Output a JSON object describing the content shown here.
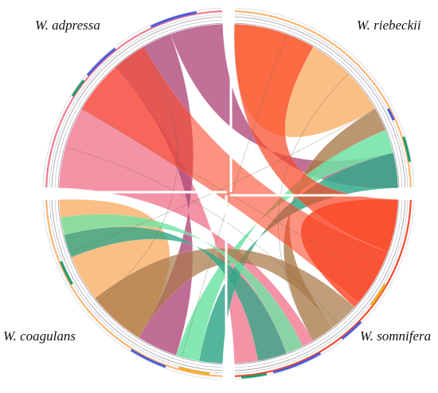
{
  "diagram": {
    "type": "chord",
    "species": [
      {
        "key": "adpressa",
        "label": "W. adpressa",
        "color": "#f27a92"
      },
      {
        "key": "riebeckii",
        "label": "W. riebeckii",
        "color": "#fbb573"
      },
      {
        "key": "coagulans",
        "label": "W. coagulans",
        "color": "#fbb573"
      },
      {
        "key": "somnifera",
        "label": "W. somnifera",
        "color": "#fa4a2a"
      }
    ],
    "colors": {
      "pink": "#f27a92",
      "magenta": "#b0487a",
      "orange": "#fbb573",
      "red": "#fa4a2a",
      "green": "#6fe3a4",
      "teal": "#35a889",
      "brown": "#a87848"
    }
  }
}
